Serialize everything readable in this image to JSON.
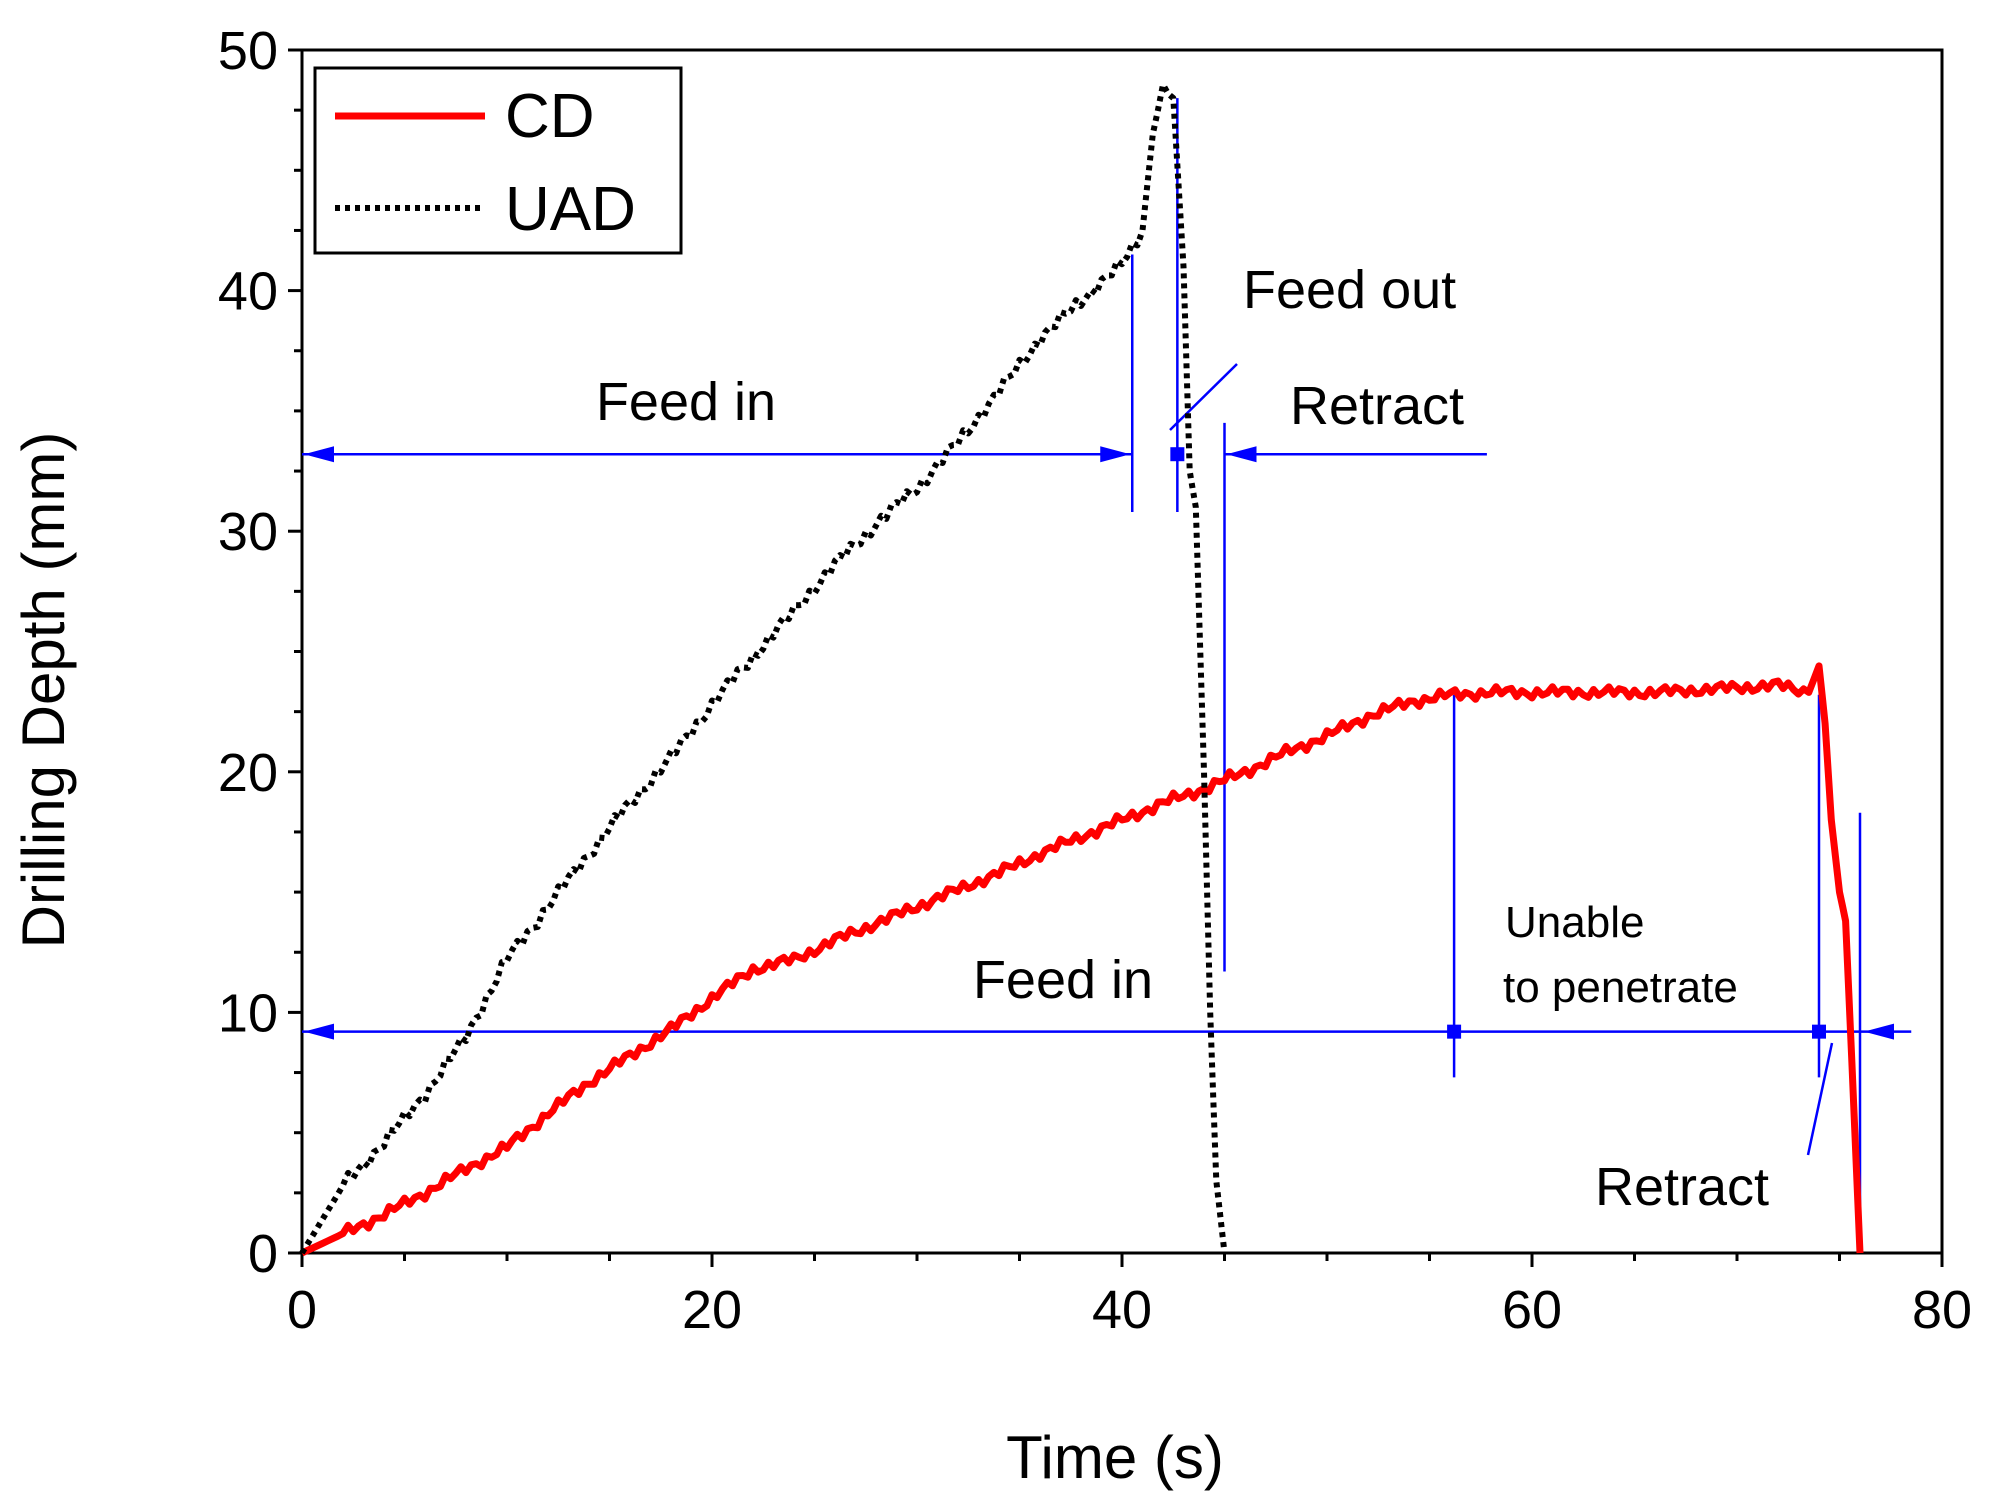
{
  "chart_data": {
    "type": "line",
    "title": "",
    "xlabel": "Time (s)",
    "ylabel": "Drilling Depth (mm)",
    "xlim": [
      0,
      80
    ],
    "ylim": [
      0,
      50
    ],
    "x_ticks": [
      0,
      20,
      40,
      60,
      80
    ],
    "y_ticks": [
      0,
      10,
      20,
      30,
      40,
      50
    ],
    "grid": false,
    "legend_position": "top-left",
    "series": [
      {
        "name": "CD",
        "style": "solid",
        "color": "#ff0000",
        "x": [
          0,
          2,
          4,
          6,
          8,
          10,
          12,
          14,
          16,
          18,
          20,
          22,
          24,
          26,
          28,
          30,
          32,
          34,
          36,
          38,
          40,
          42,
          44,
          46,
          48,
          50,
          52,
          54,
          56,
          58,
          60,
          62,
          64,
          66,
          68,
          70,
          72,
          73.5,
          74,
          74.3,
          74.6,
          75,
          75.3,
          75.6,
          76
        ],
        "y": [
          0,
          0.8,
          1.6,
          2.5,
          3.5,
          4.4,
          5.8,
          7.1,
          8.2,
          9.3,
          10.6,
          11.8,
          12.2,
          13.0,
          13.7,
          14.4,
          15.1,
          15.8,
          16.6,
          17.3,
          18.0,
          18.7,
          19.3,
          20.0,
          20.8,
          21.5,
          22.3,
          22.9,
          23.2,
          23.3,
          23.3,
          23.3,
          23.3,
          23.3,
          23.4,
          23.5,
          23.6,
          23.3,
          24.4,
          22.0,
          18.0,
          15.0,
          13.8,
          8.0,
          0
        ]
      },
      {
        "name": "UAD",
        "style": "dotted",
        "color": "#000000",
        "x": [
          0,
          2,
          4,
          6,
          8,
          10,
          12,
          14,
          16,
          18,
          20,
          22,
          24,
          26,
          28,
          30,
          32,
          34,
          36,
          38,
          40,
          41,
          41.5,
          42,
          42.5,
          43,
          43.3,
          43.6,
          44,
          44.3,
          44.6,
          45
        ],
        "y": [
          0,
          2.8,
          4.6,
          6.6,
          9.0,
          12.2,
          14.4,
          16.6,
          18.7,
          20.6,
          22.8,
          24.8,
          26.7,
          28.6,
          30.3,
          31.8,
          33.7,
          35.8,
          38.0,
          39.6,
          41.1,
          42.5,
          46.5,
          48.5,
          48.0,
          41.0,
          32.5,
          31.0,
          20.0,
          10.0,
          3.0,
          0
        ]
      }
    ],
    "annotations": [
      {
        "text": "Feed in",
        "near": "UAD"
      },
      {
        "text": "Feed out",
        "near": "UAD"
      },
      {
        "text": "Retract",
        "near": "UAD"
      },
      {
        "text": "Feed in",
        "near": "CD"
      },
      {
        "text": "Unable",
        "near": "CD"
      },
      {
        "text": "to penetrate",
        "near": "CD"
      },
      {
        "text": "Retract",
        "near": "CD"
      }
    ],
    "phase_markers": {
      "UAD": {
        "y": 33.2,
        "feed_in_end": 40.5,
        "feed_out_end": 42.7,
        "retract_start": 45.0
      },
      "CD": {
        "y": 9.2,
        "feed_in_end": 56.2,
        "unable_end": 74.0,
        "retract_start": 76.0
      }
    }
  },
  "colors": {
    "cd_line": "#ff0000",
    "uad_line": "#000000",
    "annotation_line": "#0000ff",
    "axis": "#000000"
  }
}
